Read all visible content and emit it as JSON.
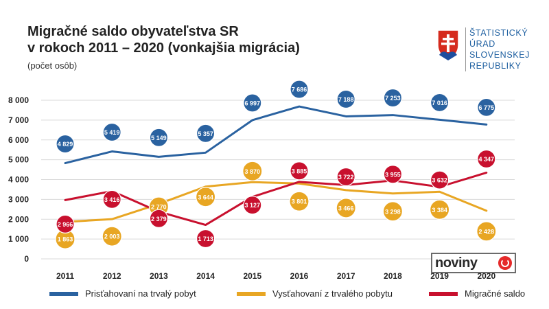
{
  "title": {
    "line1": "Migračné saldo obyvateľstva SR",
    "line2": "v rokoch 2011 – 2020 (vonkajšia migrácia)",
    "subtitle": "(počet osôb)"
  },
  "logo": {
    "lines": [
      "ŠTATISTICKÝ",
      "ÚRAD",
      "SLOVENSKEJ",
      "REPUBLIKY"
    ],
    "icon": "slovak-coat-of-arms-icon"
  },
  "badge": {
    "text": "noviny",
    "icon": "noviny-logo-icon",
    "color": "#e52a2a"
  },
  "chart_data": {
    "type": "line",
    "x": [
      "2011",
      "2012",
      "2013",
      "2014",
      "2015",
      "2016",
      "2017",
      "2018",
      "2019",
      "2020"
    ],
    "ylim": [
      0,
      8000
    ],
    "yticks": [
      "0",
      "1 000",
      "2 000",
      "3 000",
      "4 000",
      "5 000",
      "6 000",
      "7 000",
      "8 000"
    ],
    "grid": true,
    "legend": "bottom",
    "series": [
      {
        "name": "Prisťahovaní na trvalý pobyt",
        "color": "#2a62a0",
        "values": [
          4829,
          5419,
          5149,
          5357,
          6997,
          7686,
          7188,
          7253,
          7016,
          6775
        ],
        "labels": [
          "4 829",
          "5 419",
          "5 149",
          "5 357",
          "6 997",
          "7 686",
          "7 188",
          "7 253",
          "7 016",
          "6 775"
        ]
      },
      {
        "name": "Vysťahovaní z trvalého pobytu",
        "color": "#e8a623",
        "values": [
          1863,
          2003,
          2770,
          3644,
          3870,
          3801,
          3466,
          3298,
          3384,
          2428
        ],
        "labels": [
          "1 863",
          "2 003",
          "2 770",
          "3 644",
          "3 870",
          "3 801",
          "3 466",
          "3 298",
          "3 384",
          "2 428"
        ]
      },
      {
        "name": "Migračné saldo",
        "color": "#c8102e",
        "values": [
          2966,
          3416,
          2379,
          1713,
          3127,
          3885,
          3722,
          3955,
          3632,
          4347
        ],
        "labels": [
          "2 966",
          "3 416",
          "2 379",
          "1 713",
          "3 127",
          "3 885",
          "3 722",
          "3 955",
          "3 632",
          "4 347"
        ]
      }
    ]
  }
}
